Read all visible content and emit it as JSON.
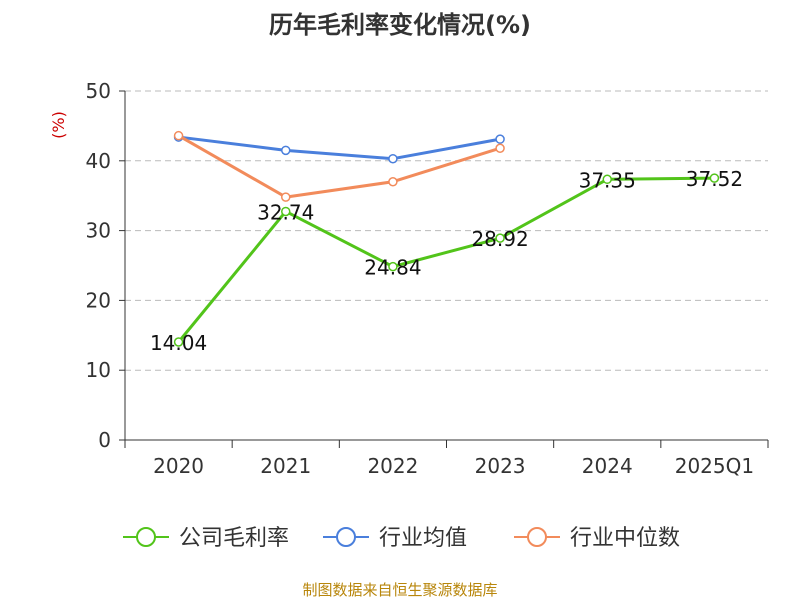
{
  "chart_data": {
    "type": "line",
    "title": "历年毛利率变化情况(%)",
    "ylabel": "(%)",
    "xlabel": "",
    "categories": [
      "2020",
      "2021",
      "2022",
      "2023",
      "2024",
      "2025Q1"
    ],
    "ylim": [
      0,
      50
    ],
    "yticks": [
      0,
      10,
      20,
      30,
      40,
      50
    ],
    "grid": true,
    "legend_position": "bottom",
    "series": [
      {
        "name": "公司毛利率",
        "color": "#52c41a",
        "values": [
          14.04,
          32.74,
          24.84,
          28.92,
          37.35,
          37.52
        ],
        "labels": [
          "14.04",
          "32.74",
          "24.84",
          "28.92",
          "37.35",
          "37.52"
        ]
      },
      {
        "name": "行业均值",
        "color": "#4a7fdc",
        "values": [
          43.4,
          41.5,
          40.3,
          43.1,
          null,
          null
        ]
      },
      {
        "name": "行业中位数",
        "color": "#f28b5b",
        "values": [
          43.6,
          34.8,
          37.0,
          41.8,
          null,
          null
        ]
      }
    ],
    "source": "制图数据来自恒生聚源数据库"
  }
}
